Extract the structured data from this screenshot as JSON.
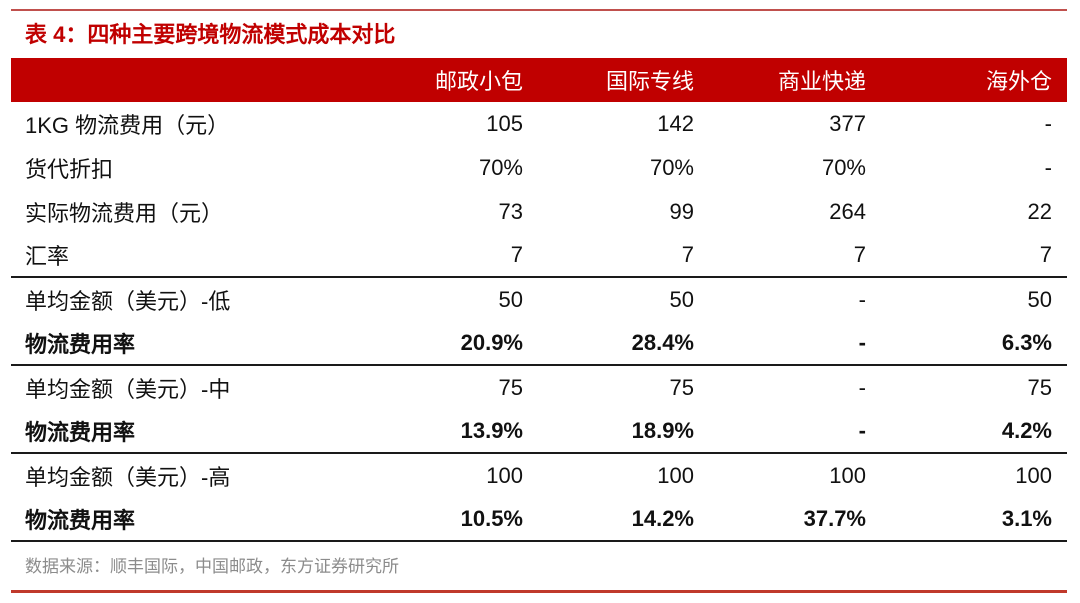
{
  "title": "表 4：四种主要跨境物流模式成本对比",
  "table": {
    "headers": [
      "",
      "邮政小包",
      "国际专线",
      "商业快递",
      "海外仓"
    ],
    "rows": [
      {
        "label": "1KG 物流费用（元）",
        "values": [
          "105",
          "142",
          "377",
          "-"
        ],
        "bold": false
      },
      {
        "label": "货代折扣",
        "values": [
          "70%",
          "70%",
          "70%",
          "-"
        ],
        "bold": false
      },
      {
        "label": "实际物流费用（元）",
        "values": [
          "73",
          "99",
          "264",
          "22"
        ],
        "bold": false
      },
      {
        "label": "汇率",
        "values": [
          "7",
          "7",
          "7",
          "7"
        ],
        "bold": false
      },
      {
        "label": "单均金额（美元）-低",
        "values": [
          "50",
          "50",
          "-",
          "50"
        ],
        "bold": false
      },
      {
        "label": "物流费用率",
        "values": [
          "20.9%",
          "28.4%",
          "-",
          "6.3%"
        ],
        "bold": true
      },
      {
        "label": "单均金额（美元）-中",
        "values": [
          "75",
          "75",
          "-",
          "75"
        ],
        "bold": false
      },
      {
        "label": "物流费用率",
        "values": [
          "13.9%",
          "18.9%",
          "-",
          "4.2%"
        ],
        "bold": true
      },
      {
        "label": "单均金额（美元）-高",
        "values": [
          "100",
          "100",
          "100",
          "100"
        ],
        "bold": false
      },
      {
        "label": "物流费用率",
        "values": [
          "10.5%",
          "14.2%",
          "37.7%",
          "3.1%"
        ],
        "bold": true
      }
    ]
  },
  "source": "数据来源：顺丰国际，中国邮政，东方证券研究所",
  "colors": {
    "accent": "#C00000",
    "header_text": "#FFFFFF",
    "source_text": "#8C8C8C"
  }
}
